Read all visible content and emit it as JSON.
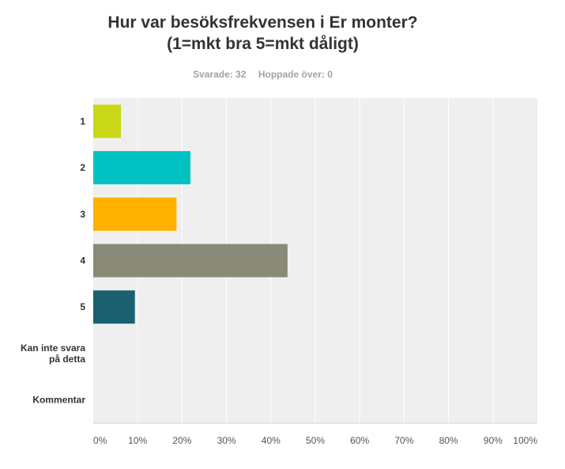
{
  "header": {
    "title_line1": "Hur var besöksfrekvensen i Er monter?",
    "title_line2": "(1=mkt bra 5=mkt dåligt)",
    "answered": "Svarade: 32",
    "skipped": "Hoppade över: 0"
  },
  "chart_data": {
    "type": "bar",
    "orientation": "horizontal",
    "categories": [
      "1",
      "2",
      "3",
      "4",
      "5",
      "Kan inte svara\npå detta",
      "Kommentar"
    ],
    "values": [
      6.25,
      21.88,
      18.75,
      43.75,
      9.38,
      0,
      0
    ],
    "colors": [
      "#c8d818",
      "#00c2c2",
      "#ffb000",
      "#898b78",
      "#1a6070",
      "#cccccc",
      "#cccccc"
    ],
    "xlim": [
      0,
      100
    ],
    "ticks": [
      "0%",
      "10%",
      "20%",
      "30%",
      "40%",
      "50%",
      "60%",
      "70%",
      "80%",
      "90%",
      "100%"
    ],
    "grid": true,
    "background": "#efefef"
  }
}
